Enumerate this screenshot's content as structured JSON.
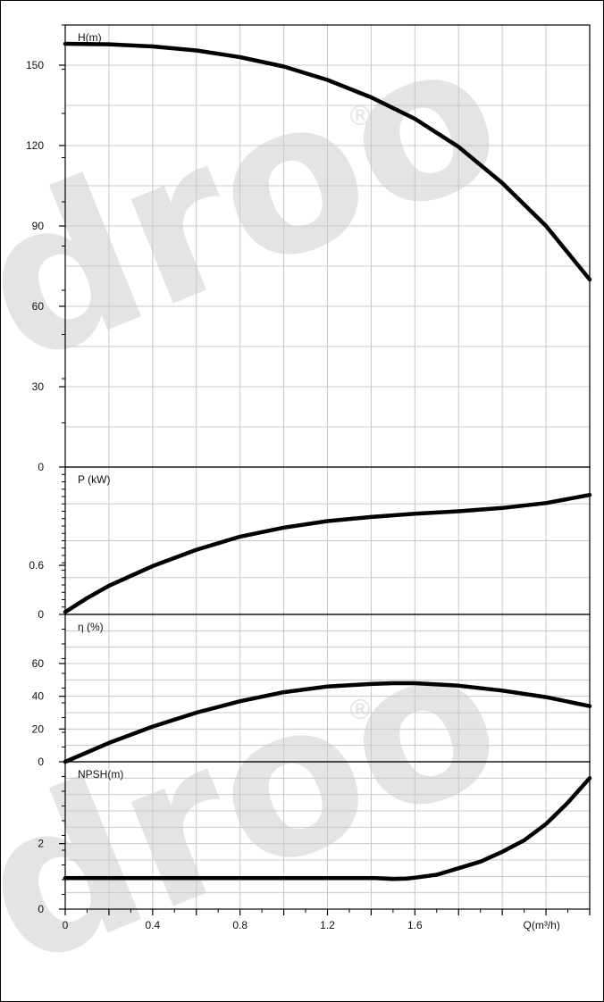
{
  "watermark": {
    "text": "droo",
    "registered": "®"
  },
  "chart_data": [
    {
      "type": "line",
      "ylabel": "H(m)",
      "xlim": [
        0,
        2.4
      ],
      "ylim": [
        0,
        165
      ],
      "yticks": [
        0,
        30,
        60,
        90,
        120,
        150
      ],
      "series": [
        {
          "x": [
            0,
            0.2,
            0.4,
            0.6,
            0.8,
            1.0,
            1.2,
            1.4,
            1.6,
            1.8,
            2.0,
            2.2,
            2.4
          ],
          "y": [
            158,
            157.8,
            157,
            155.5,
            153,
            149.5,
            144.5,
            138,
            130,
            119.5,
            106,
            90,
            70
          ]
        }
      ]
    },
    {
      "type": "line",
      "ylabel": "P (kW)",
      "xlim": [
        0,
        2.4
      ],
      "ylim": [
        0,
        1.8
      ],
      "yticks": [
        0,
        0.6
      ],
      "series": [
        {
          "x": [
            0,
            0.1,
            0.2,
            0.4,
            0.6,
            0.8,
            1.0,
            1.2,
            1.4,
            1.6,
            1.8,
            2.0,
            2.2,
            2.4
          ],
          "y": [
            0.03,
            0.2,
            0.35,
            0.59,
            0.79,
            0.95,
            1.06,
            1.14,
            1.19,
            1.23,
            1.26,
            1.3,
            1.36,
            1.46
          ]
        }
      ]
    },
    {
      "type": "line",
      "ylabel": "η (%)",
      "xlim": [
        0,
        2.4
      ],
      "ylim": [
        0,
        90
      ],
      "yticks": [
        0,
        20,
        40,
        60
      ],
      "series": [
        {
          "x": [
            0,
            0.2,
            0.4,
            0.6,
            0.8,
            1.0,
            1.2,
            1.4,
            1.5,
            1.6,
            1.8,
            2.0,
            2.2,
            2.4
          ],
          "y": [
            0,
            11.5,
            21.5,
            30,
            37,
            42.5,
            46,
            47.5,
            48,
            48,
            46.5,
            43.5,
            39.5,
            34
          ]
        }
      ]
    },
    {
      "type": "line",
      "ylabel": "NPSH(m)",
      "xlabel": "Q(m³/h)",
      "xlim": [
        0,
        2.4
      ],
      "ylim": [
        0,
        4.5
      ],
      "yticks": [
        0,
        2
      ],
      "xticks": [
        0,
        0.4,
        0.8,
        1.2,
        1.6
      ],
      "series": [
        {
          "x": [
            0,
            0.4,
            0.8,
            1.2,
            1.42,
            1.5,
            1.56,
            1.6,
            1.7,
            1.8,
            1.9,
            2.0,
            2.1,
            2.2,
            2.3,
            2.4
          ],
          "y": [
            0.95,
            0.95,
            0.95,
            0.95,
            0.95,
            0.92,
            0.93,
            0.96,
            1.05,
            1.25,
            1.45,
            1.75,
            2.1,
            2.6,
            3.25,
            4.0
          ]
        }
      ]
    }
  ]
}
